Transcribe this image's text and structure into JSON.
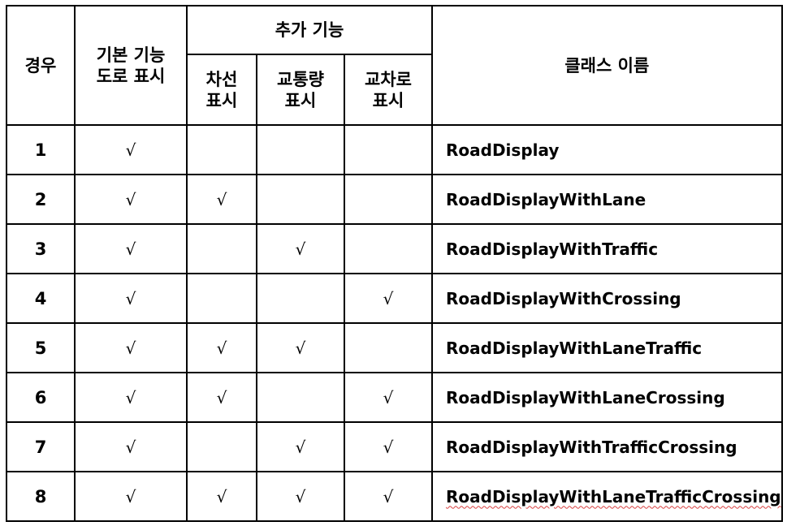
{
  "headers": {
    "case": "경우",
    "basic": [
      "기본 기능",
      "도로 표시"
    ],
    "extra_group": "추가 기능",
    "lane": [
      "차선",
      "표시"
    ],
    "traffic": [
      "교통량",
      "표시"
    ],
    "crossing": [
      "교차로",
      "표시"
    ],
    "class_name": "클래스 이름"
  },
  "check_mark": "√",
  "rows": [
    {
      "case": "1",
      "basic": "√",
      "lane": "",
      "traffic": "",
      "crossing": "",
      "class_name": "RoadDisplay"
    },
    {
      "case": "2",
      "basic": "√",
      "lane": "√",
      "traffic": "",
      "crossing": "",
      "class_name": "RoadDisplayWithLane"
    },
    {
      "case": "3",
      "basic": "√",
      "lane": "",
      "traffic": "√",
      "crossing": "",
      "class_name": "RoadDisplayWithTraffic"
    },
    {
      "case": "4",
      "basic": "√",
      "lane": "",
      "traffic": "",
      "crossing": "√",
      "class_name": "RoadDisplayWithCrossing"
    },
    {
      "case": "5",
      "basic": "√",
      "lane": "√",
      "traffic": "√",
      "crossing": "",
      "class_name": "RoadDisplayWithLaneTraffic"
    },
    {
      "case": "6",
      "basic": "√",
      "lane": "√",
      "traffic": "",
      "crossing": "√",
      "class_name": "RoadDisplayWithLaneCrossing"
    },
    {
      "case": "7",
      "basic": "√",
      "lane": "",
      "traffic": "√",
      "crossing": "√",
      "class_name": "RoadDisplayWithTrafficCrossing"
    },
    {
      "case": "8",
      "basic": "√",
      "lane": "√",
      "traffic": "√",
      "crossing": "√",
      "class_name": "RoadDisplayWithLaneTrafficCrossing"
    }
  ],
  "colors": {
    "border": "#000000",
    "spellcheck_underline": "#d94040"
  }
}
